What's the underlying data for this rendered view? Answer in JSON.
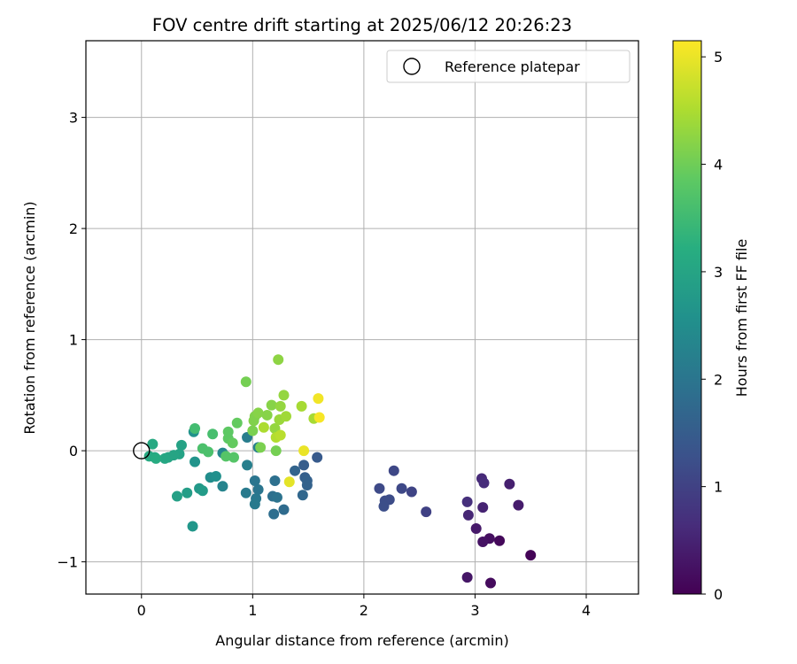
{
  "chart_data": {
    "type": "scatter",
    "title": "FOV centre drift starting at 2025/06/12 20:26:23",
    "xlabel": "Angular distance from reference (arcmin)",
    "ylabel": "Rotation from reference (arcmin)",
    "xlim": [
      -0.5,
      4.47
    ],
    "ylim": [
      -1.29,
      3.69
    ],
    "xticks": [
      0,
      1,
      2,
      3,
      4
    ],
    "xtick_labels": [
      "0",
      "1",
      "2",
      "3",
      "4"
    ],
    "yticks": [
      -1,
      0,
      1,
      2,
      3
    ],
    "ytick_labels": [
      "−1",
      "0",
      "1",
      "2",
      "3"
    ],
    "grid": true,
    "legend": {
      "position": "upper right",
      "entries": [
        "Reference platepar"
      ]
    },
    "reference_point": {
      "x": 0,
      "y": 0,
      "label": "Reference platepar",
      "marker": "open-circle"
    },
    "colorbar": {
      "label": "Hours from first FF file",
      "colormap": "viridis",
      "range": [
        0,
        5.15
      ],
      "ticks": [
        0,
        1,
        2,
        3,
        4,
        5
      ],
      "tick_labels": [
        "0",
        "1",
        "2",
        "3",
        "4",
        "5"
      ]
    },
    "color_note": "c = hours from first FF file",
    "points": [
      {
        "x": 3.5,
        "y": -0.94,
        "c": 0.05
      },
      {
        "x": 3.22,
        "y": -0.81,
        "c": 0.1
      },
      {
        "x": 3.14,
        "y": -1.19,
        "c": 0.15
      },
      {
        "x": 3.13,
        "y": -0.79,
        "c": 0.2
      },
      {
        "x": 3.07,
        "y": -0.82,
        "c": 0.25
      },
      {
        "x": 2.93,
        "y": -1.14,
        "c": 0.3
      },
      {
        "x": 3.01,
        "y": -0.7,
        "c": 0.35
      },
      {
        "x": 3.39,
        "y": -0.49,
        "c": 0.4
      },
      {
        "x": 3.31,
        "y": -0.3,
        "c": 0.45
      },
      {
        "x": 3.07,
        "y": -0.51,
        "c": 0.5
      },
      {
        "x": 2.94,
        "y": -0.58,
        "c": 0.55
      },
      {
        "x": 3.06,
        "y": -0.25,
        "c": 0.6
      },
      {
        "x": 3.08,
        "y": -0.29,
        "c": 0.65
      },
      {
        "x": 2.93,
        "y": -0.46,
        "c": 0.7
      },
      {
        "x": 2.56,
        "y": -0.55,
        "c": 1.0
      },
      {
        "x": 2.43,
        "y": -0.37,
        "c": 1.05
      },
      {
        "x": 2.27,
        "y": -0.18,
        "c": 1.1
      },
      {
        "x": 2.34,
        "y": -0.34,
        "c": 1.12
      },
      {
        "x": 2.14,
        "y": -0.34,
        "c": 1.15
      },
      {
        "x": 2.23,
        "y": -0.44,
        "c": 1.18
      },
      {
        "x": 2.19,
        "y": -0.45,
        "c": 1.2
      },
      {
        "x": 2.18,
        "y": -0.5,
        "c": 1.22
      },
      {
        "x": 1.58,
        "y": -0.06,
        "c": 1.45
      },
      {
        "x": 1.46,
        "y": -0.13,
        "c": 1.5
      },
      {
        "x": 1.47,
        "y": -0.24,
        "c": 1.55
      },
      {
        "x": 1.49,
        "y": -0.27,
        "c": 1.58
      },
      {
        "x": 1.49,
        "y": -0.31,
        "c": 1.6
      },
      {
        "x": 1.38,
        "y": -0.18,
        "c": 1.65
      },
      {
        "x": 1.45,
        "y": -0.4,
        "c": 1.7
      },
      {
        "x": 1.28,
        "y": -0.53,
        "c": 1.8
      },
      {
        "x": 1.19,
        "y": -0.57,
        "c": 1.85
      },
      {
        "x": 1.18,
        "y": -0.41,
        "c": 1.9
      },
      {
        "x": 1.2,
        "y": -0.27,
        "c": 1.9
      },
      {
        "x": 1.22,
        "y": -0.42,
        "c": 1.95
      },
      {
        "x": 1.05,
        "y": -0.35,
        "c": 2.0
      },
      {
        "x": 1.02,
        "y": -0.27,
        "c": 2.0
      },
      {
        "x": 1.03,
        "y": -0.43,
        "c": 2.05
      },
      {
        "x": 1.02,
        "y": -0.48,
        "c": 2.1
      },
      {
        "x": 0.94,
        "y": -0.38,
        "c": 2.1
      },
      {
        "x": 0.95,
        "y": 0.12,
        "c": 2.15
      },
      {
        "x": 0.95,
        "y": -0.13,
        "c": 2.2
      },
      {
        "x": 1.05,
        "y": 0.03,
        "c": 2.2
      },
      {
        "x": 0.73,
        "y": -0.32,
        "c": 2.3
      },
      {
        "x": 0.73,
        "y": -0.02,
        "c": 2.35
      },
      {
        "x": 0.62,
        "y": -0.24,
        "c": 2.5
      },
      {
        "x": 0.67,
        "y": -0.23,
        "c": 2.55
      },
      {
        "x": 0.47,
        "y": 0.17,
        "c": 2.6
      },
      {
        "x": 0.48,
        "y": -0.1,
        "c": 2.65
      },
      {
        "x": 0.46,
        "y": -0.68,
        "c": 2.7
      },
      {
        "x": 0.52,
        "y": -0.34,
        "c": 2.75
      },
      {
        "x": 0.55,
        "y": -0.36,
        "c": 2.8
      },
      {
        "x": 0.41,
        "y": -0.38,
        "c": 2.85
      },
      {
        "x": 0.32,
        "y": -0.41,
        "c": 2.9
      },
      {
        "x": 0.36,
        "y": 0.05,
        "c": 2.95
      },
      {
        "x": 0.34,
        "y": -0.03,
        "c": 2.95
      },
      {
        "x": 0.29,
        "y": -0.04,
        "c": 3.0
      },
      {
        "x": 0.24,
        "y": -0.06,
        "c": 3.0
      },
      {
        "x": 0.21,
        "y": -0.07,
        "c": 3.05
      },
      {
        "x": 0.12,
        "y": -0.06,
        "c": 3.05
      },
      {
        "x": 0.07,
        "y": -0.05,
        "c": 3.1
      },
      {
        "x": 0.1,
        "y": 0.06,
        "c": 3.1
      },
      {
        "x": 0.13,
        "y": -0.07,
        "c": 3.15
      },
      {
        "x": 0.48,
        "y": 0.2,
        "c": 3.55
      },
      {
        "x": 0.64,
        "y": 0.15,
        "c": 3.6
      },
      {
        "x": 0.55,
        "y": 0.02,
        "c": 3.65
      },
      {
        "x": 0.6,
        "y": -0.01,
        "c": 3.65
      },
      {
        "x": 0.76,
        "y": -0.05,
        "c": 3.75
      },
      {
        "x": 0.83,
        "y": -0.06,
        "c": 3.75
      },
      {
        "x": 0.78,
        "y": 0.11,
        "c": 3.85
      },
      {
        "x": 0.78,
        "y": 0.17,
        "c": 3.85
      },
      {
        "x": 0.82,
        "y": 0.07,
        "c": 3.9
      },
      {
        "x": 0.86,
        "y": 0.25,
        "c": 3.9
      },
      {
        "x": 0.94,
        "y": 0.62,
        "c": 4.05
      },
      {
        "x": 1.21,
        "y": 0.0,
        "c": 4.05
      },
      {
        "x": 1.07,
        "y": 0.03,
        "c": 4.1
      },
      {
        "x": 1.0,
        "y": 0.18,
        "c": 4.1
      },
      {
        "x": 1.01,
        "y": 0.27,
        "c": 4.15
      },
      {
        "x": 1.02,
        "y": 0.31,
        "c": 4.15
      },
      {
        "x": 1.05,
        "y": 0.34,
        "c": 4.2
      },
      {
        "x": 1.13,
        "y": 0.32,
        "c": 4.2
      },
      {
        "x": 1.17,
        "y": 0.41,
        "c": 4.2
      },
      {
        "x": 1.23,
        "y": 0.82,
        "c": 4.25
      },
      {
        "x": 1.25,
        "y": 0.4,
        "c": 4.3
      },
      {
        "x": 1.2,
        "y": 0.2,
        "c": 4.3
      },
      {
        "x": 1.28,
        "y": 0.5,
        "c": 4.3
      },
      {
        "x": 1.24,
        "y": 0.28,
        "c": 4.35
      },
      {
        "x": 1.3,
        "y": 0.31,
        "c": 4.4
      },
      {
        "x": 1.44,
        "y": 0.4,
        "c": 4.45
      },
      {
        "x": 1.55,
        "y": 0.29,
        "c": 4.45
      },
      {
        "x": 1.1,
        "y": 0.21,
        "c": 4.5
      },
      {
        "x": 1.21,
        "y": 0.12,
        "c": 4.55
      },
      {
        "x": 1.25,
        "y": 0.14,
        "c": 4.6
      },
      {
        "x": 1.33,
        "y": -0.28,
        "c": 4.95
      },
      {
        "x": 1.46,
        "y": 0.0,
        "c": 5.0
      },
      {
        "x": 1.59,
        "y": 0.47,
        "c": 5.05
      },
      {
        "x": 1.6,
        "y": 0.3,
        "c": 5.1
      }
    ]
  }
}
